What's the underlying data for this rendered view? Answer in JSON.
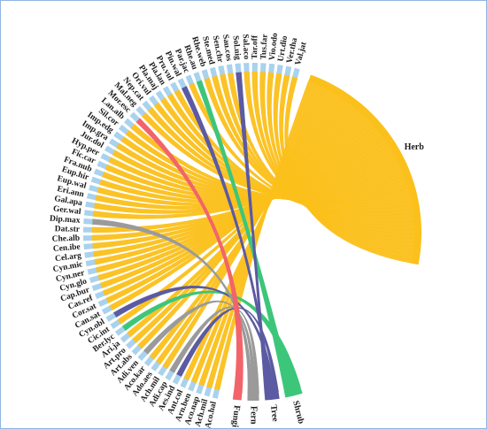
{
  "diagram": {
    "type": "chord",
    "colors": {
      "Herb": "#fbc01b",
      "Shrub": "#3cc67a",
      "Tree": "#5b5aa2",
      "Fern": "#9a9a9a",
      "Fungi": "#f2646a",
      "species_tip": "#a8d2ee"
    },
    "groups": [
      "Herb",
      "Shrub",
      "Tree",
      "Fern",
      "Fungi"
    ],
    "species": [
      {
        "name": "Aco.hal",
        "type": "Herb"
      },
      {
        "name": "Ach.mil",
        "type": "Herb"
      },
      {
        "name": "Aco.nap",
        "type": "Herb"
      },
      {
        "name": "Arn.ben",
        "type": "Herb"
      },
      {
        "name": "Ant.col",
        "type": "Herb"
      },
      {
        "name": "Aes.ind",
        "type": "Tree"
      },
      {
        "name": "Adi.cap",
        "type": "Fern"
      },
      {
        "name": "Ach.mil",
        "type": "Herb"
      },
      {
        "name": "Ado.aes",
        "type": "Herb"
      },
      {
        "name": "Aco.kar",
        "type": "Herb"
      },
      {
        "name": "Adi.ven",
        "type": "Fern"
      },
      {
        "name": "Art.abs",
        "type": "Herb"
      },
      {
        "name": "Art.pro",
        "type": "Herb"
      },
      {
        "name": "Ari.ja",
        "type": "Herb"
      },
      {
        "name": "Ber.lyc",
        "type": "Shrub"
      },
      {
        "name": "Cic.int",
        "type": "Herb"
      },
      {
        "name": "Cyn.obl",
        "type": "Tree"
      },
      {
        "name": "Can.sat",
        "type": "Herb"
      },
      {
        "name": "Cor.sat",
        "type": "Herb"
      },
      {
        "name": "Cas.ref",
        "type": "Herb"
      },
      {
        "name": "Cap.bur",
        "type": "Herb"
      },
      {
        "name": "Cyn.glo",
        "type": "Herb"
      },
      {
        "name": "Cyn.ner",
        "type": "Herb"
      },
      {
        "name": "Cyn.mic",
        "type": "Herb"
      },
      {
        "name": "Cel.arg",
        "type": "Herb"
      },
      {
        "name": "Cen.ibe",
        "type": "Herb"
      },
      {
        "name": "Che.alb",
        "type": "Herb"
      },
      {
        "name": "Dat.str",
        "type": "Herb"
      },
      {
        "name": "Dip.max",
        "type": "Fern"
      },
      {
        "name": "Ger.wal",
        "type": "Herb"
      },
      {
        "name": "Gal.apa",
        "type": "Herb"
      },
      {
        "name": "Eri.ann",
        "type": "Herb"
      },
      {
        "name": "Eup.wal",
        "type": "Herb"
      },
      {
        "name": "Eup.hir",
        "type": "Herb"
      },
      {
        "name": "Fra.nub",
        "type": "Herb"
      },
      {
        "name": "Fic.car",
        "type": "Herb"
      },
      {
        "name": "Hyp.per",
        "type": "Herb"
      },
      {
        "name": "Jur.dol",
        "type": "Herb"
      },
      {
        "name": "Imp.gra",
        "type": "Herb"
      },
      {
        "name": "Imp.edg",
        "type": "Herb"
      },
      {
        "name": "Sil.cor",
        "type": "Herb"
      },
      {
        "name": "Lan.alb",
        "type": "Herb"
      },
      {
        "name": "Mor.esc",
        "type": "Fungi"
      },
      {
        "name": "Mal.neg",
        "type": "Herb"
      },
      {
        "name": "Nep.cat",
        "type": "Herb"
      },
      {
        "name": "Ori.vul",
        "type": "Herb"
      },
      {
        "name": "Pla.maj",
        "type": "Herb"
      },
      {
        "name": "Pla.lan",
        "type": "Herb"
      },
      {
        "name": "Pru.vul",
        "type": "Herb"
      },
      {
        "name": "Pin.wal",
        "type": "Tree"
      },
      {
        "name": "Par.jac",
        "type": "Herb"
      },
      {
        "name": "Rhe.au",
        "type": "Shrub"
      },
      {
        "name": "Rhe.web",
        "type": "Herb"
      },
      {
        "name": "Ste.med",
        "type": "Herb"
      },
      {
        "name": "Sen.chr",
        "type": "Herb"
      },
      {
        "name": "Sau.cos",
        "type": "Herb"
      },
      {
        "name": "Sol.nig",
        "type": "Tree"
      },
      {
        "name": "Sal.aco",
        "type": "Herb"
      },
      {
        "name": "Tar.off",
        "type": "Herb"
      },
      {
        "name": "Tus.far",
        "type": "Herb"
      },
      {
        "name": "Vio.odo",
        "type": "Herb"
      },
      {
        "name": "Urt.dio",
        "type": "Herb"
      },
      {
        "name": "Ver.tha",
        "type": "Herb"
      },
      {
        "name": "Val.jat",
        "type": "Herb"
      }
    ]
  }
}
